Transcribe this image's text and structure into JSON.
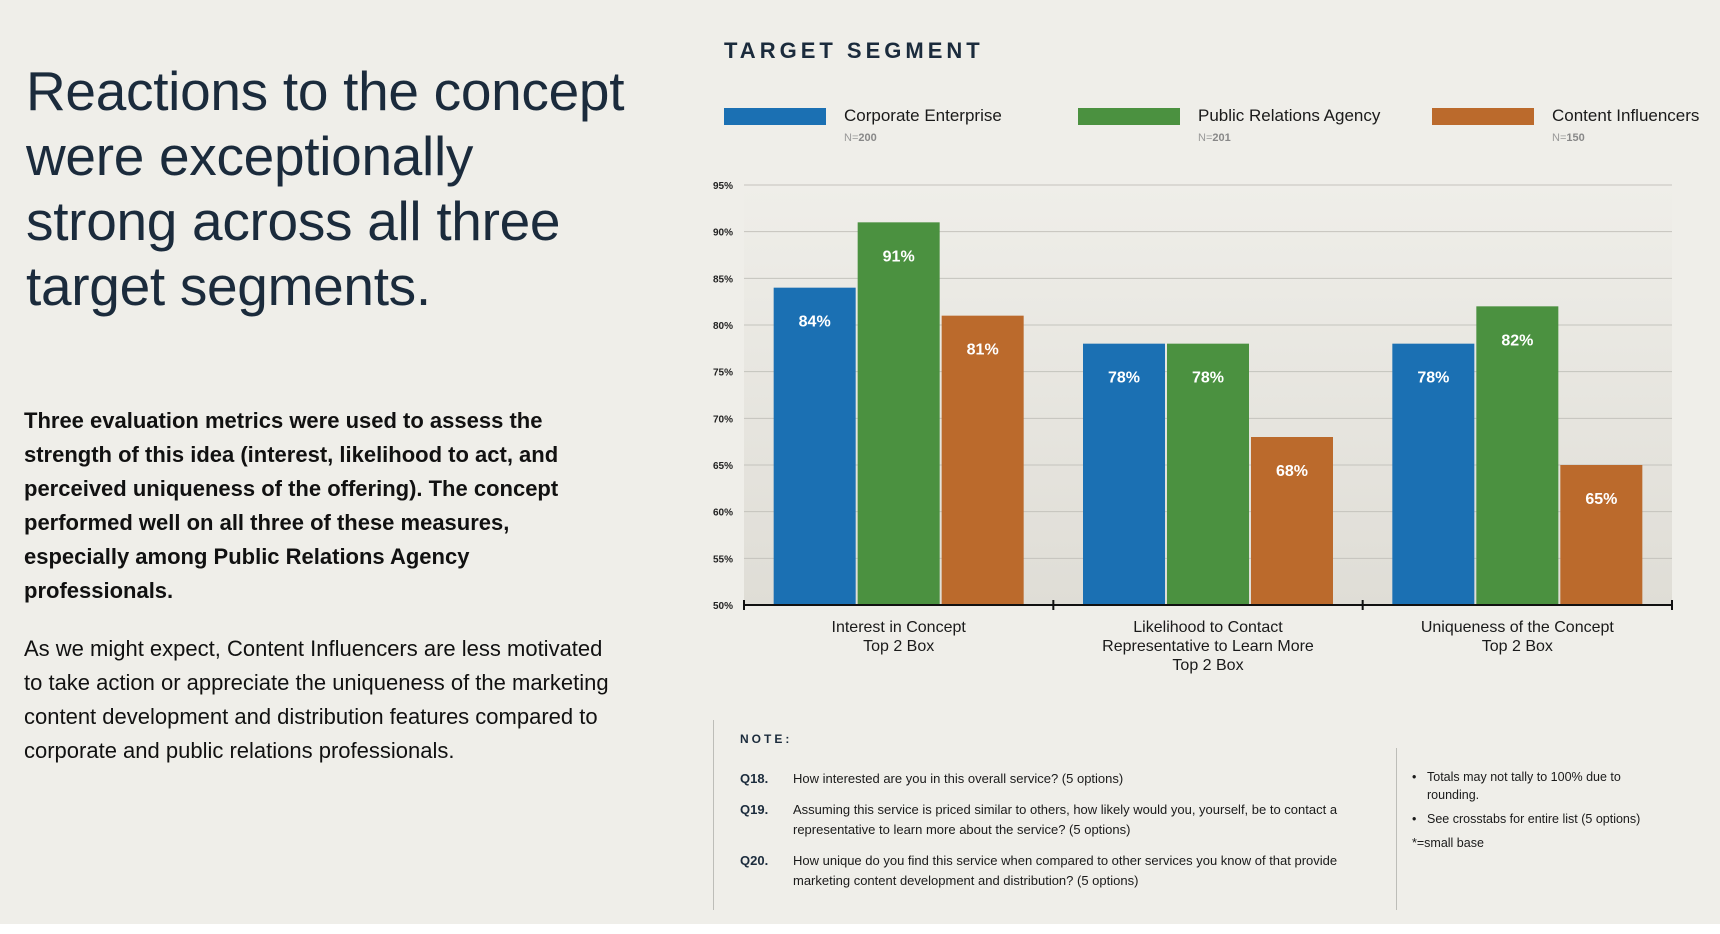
{
  "headline": "Reactions to the concept were exceptionally strong across all three target segments.",
  "lead": "Three evaluation metrics were used to assess the strength of this idea (interest, likelihood to act, and perceived uniqueness of the offering). The concept performed well on all three of these measures, especially among Public Relations Agency professionals.",
  "body": "As we might expect, Content Influencers are less motivated to take action or appreciate the uniqueness of the marketing content development and distribution features compared to corporate and public relations professionals.",
  "segment_title": "TARGET SEGMENT",
  "legend": [
    {
      "label": "Corporate Enterprise",
      "n_prefix": "N=",
      "n_value": "200",
      "color": "#1b70b3"
    },
    {
      "label": "Public Relations Agency",
      "n_prefix": "N=",
      "n_value": "201",
      "color": "#4b9140"
    },
    {
      "label": "Content Influencers",
      "n_prefix": "N=",
      "n_value": "150",
      "color": "#bb6a2c"
    }
  ],
  "chart_data": {
    "type": "bar",
    "categories": [
      [
        "Interest in Concept",
        "Top 2 Box"
      ],
      [
        "Likelihood to Contact",
        "Representative to Learn More",
        "Top 2 Box"
      ],
      [
        "Uniqueness of the Concept",
        "Top 2 Box"
      ]
    ],
    "series": [
      {
        "name": "Corporate Enterprise",
        "values": [
          84,
          78,
          78
        ],
        "labels": [
          "84%",
          "78%",
          "78%"
        ],
        "color": "#1b70b3"
      },
      {
        "name": "Public Relations Agency",
        "values": [
          91,
          78,
          82
        ],
        "labels": [
          "91%",
          "78%",
          "82%"
        ],
        "color": "#4b9140"
      },
      {
        "name": "Content Influencers",
        "values": [
          81,
          68,
          65
        ],
        "labels": [
          "81%",
          "68%",
          "65%"
        ],
        "color": "#bb6a2c"
      }
    ],
    "ylim": [
      50,
      95
    ],
    "yticks": [
      "50%",
      "55%",
      "60%",
      "65%",
      "70%",
      "75%",
      "80%",
      "85%",
      "90%",
      "95%"
    ],
    "grid": true
  },
  "notes": {
    "heading": "NOTE:",
    "questions": [
      {
        "id": "Q18.",
        "text": "How interested are you in this overall service? (5 options)"
      },
      {
        "id": "Q19.",
        "text": "Assuming this service is priced similar to others, how likely would you, yourself, be to contact a representative to learn more about the service? (5 options)"
      },
      {
        "id": "Q20.",
        "text": "How unique do you find this service when compared to other services you know of that provide marketing content development and distribution? (5 options)"
      }
    ],
    "side": [
      "Totals may not tally to 100% due to rounding.",
      "See crosstabs for entire list (5 options)"
    ],
    "small_base": "*=small base"
  }
}
